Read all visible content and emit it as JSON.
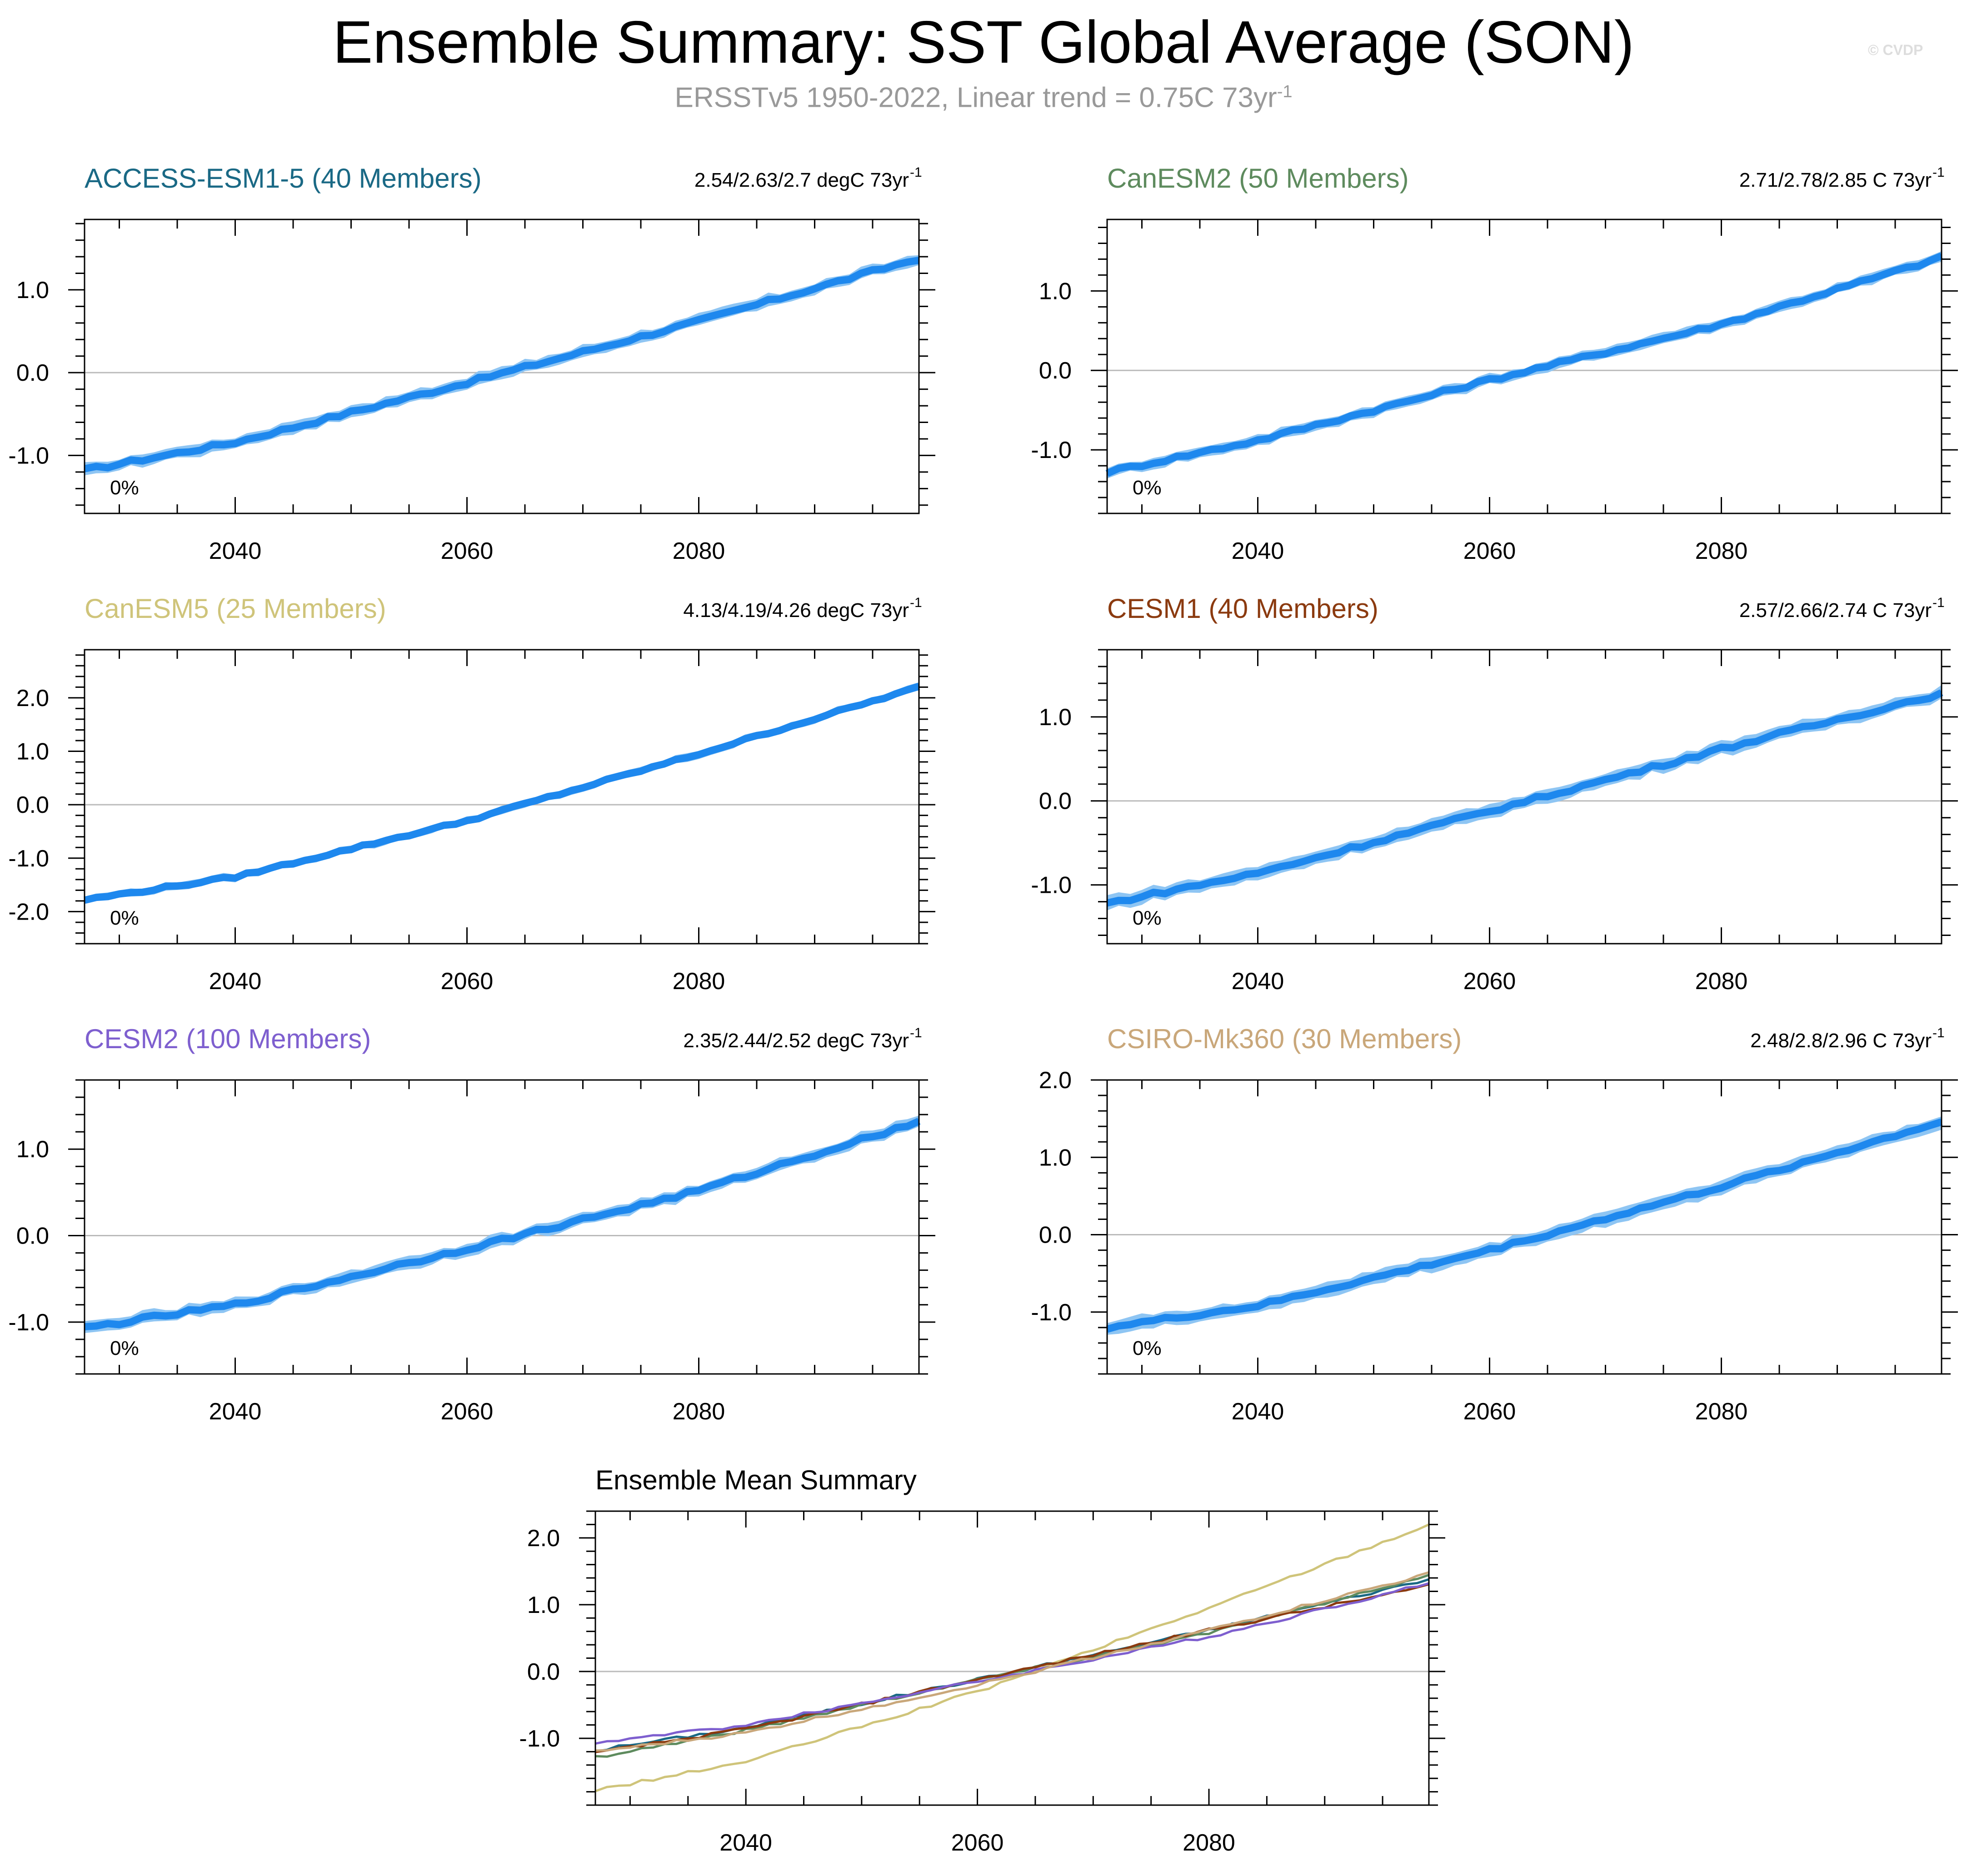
{
  "figure": {
    "title": "Ensemble Summary: SST Global Average (SON)",
    "subtitle_text": "ERSSTv5 1950-2022, Linear trend = 0.75C 73yr",
    "subtitle_sup": "-1",
    "watermark": "© CVDP",
    "colors": {
      "band": "#8ec5f3",
      "mean": "#1e88ee",
      "zero": "#bbbbbb"
    }
  },
  "chart_data": [
    {
      "type": "area",
      "title": "ACCESS-ESM1-5 (40 Members)",
      "title_color": "#1a6985",
      "trend_text": "2.54/2.63/2.7 degC 73yr",
      "trend_sup": "-1",
      "annotation": "0%",
      "x_start": 2027,
      "x_end": 2099,
      "xticks": [
        2040,
        2060,
        2080
      ],
      "xtick_labels": [
        "2040",
        "2060",
        "2080"
      ],
      "ylim": [
        -1.7,
        1.85
      ],
      "yticks": [
        -1.0,
        0.0,
        1.0
      ],
      "ytick_labels": [
        "-1.0",
        "0.0",
        "1.0"
      ],
      "series": [
        {
          "x": [
            2027,
            2040,
            2060,
            2080,
            2099
          ],
          "y": [
            -1.18,
            -0.84,
            -0.12,
            0.62,
            1.38
          ]
        }
      ],
      "band_halfwidth": 0.07
    },
    {
      "type": "area",
      "title": "CanESM2 (50 Members)",
      "title_color": "#5e8b5e",
      "trend_text": "2.71/2.78/2.85 C 73yr",
      "trend_sup": "-1",
      "annotation": "0%",
      "x_start": 2027,
      "x_end": 2099,
      "xticks": [
        2040,
        2060,
        2080
      ],
      "xtick_labels": [
        "2040",
        "2060",
        "2080"
      ],
      "ylim": [
        -1.8,
        1.9
      ],
      "yticks": [
        -1.0,
        0.0,
        1.0
      ],
      "ytick_labels": [
        "-1.0",
        "0.0",
        "1.0"
      ],
      "series": [
        {
          "x": [
            2027,
            2040,
            2060,
            2080,
            2099
          ],
          "y": [
            -1.28,
            -0.88,
            -0.12,
            0.58,
            1.42
          ]
        }
      ],
      "band_halfwidth": 0.07
    },
    {
      "type": "area",
      "title": "CanESM5 (25 Members)",
      "title_color": "#cfc47a",
      "trend_text": "4.13/4.19/4.26 degC 73yr",
      "trend_sup": "-1",
      "annotation": "0%",
      "x_start": 2027,
      "x_end": 2099,
      "xticks": [
        2040,
        2060,
        2080
      ],
      "xtick_labels": [
        "2040",
        "2060",
        "2080"
      ],
      "ylim": [
        -2.6,
        2.9
      ],
      "yticks": [
        -2.0,
        -1.0,
        0.0,
        1.0,
        2.0
      ],
      "ytick_labels": [
        "-2.0",
        "-1.0",
        "0.0",
        "1.0",
        "2.0"
      ],
      "series": [
        {
          "x": [
            2027,
            2040,
            2060,
            2080,
            2099
          ],
          "y": [
            -1.78,
            -1.35,
            -0.3,
            0.95,
            2.2
          ]
        }
      ],
      "band_halfwidth": 0.07
    },
    {
      "type": "area",
      "title": "CESM1 (40 Members)",
      "title_color": "#8b3a0f",
      "trend_text": "2.57/2.66/2.74 C 73yr",
      "trend_sup": "-1",
      "annotation": "0%",
      "x_start": 2027,
      "x_end": 2099,
      "xticks": [
        2040,
        2060,
        2080
      ],
      "xtick_labels": [
        "2040",
        "2060",
        "2080"
      ],
      "ylim": [
        -1.7,
        1.8
      ],
      "yticks": [
        -1.0,
        0.0,
        1.0
      ],
      "ytick_labels": [
        "-1.0",
        "0.0",
        "1.0"
      ],
      "series": [
        {
          "x": [
            2027,
            2040,
            2060,
            2080,
            2099
          ],
          "y": [
            -1.22,
            -0.86,
            -0.12,
            0.62,
            1.28
          ]
        }
      ],
      "band_halfwidth": 0.08
    },
    {
      "type": "area",
      "title": "CESM2 (100 Members)",
      "title_color": "#7e5fcf",
      "trend_text": "2.35/2.44/2.52 degC 73yr",
      "trend_sup": "-1",
      "annotation": "0%",
      "x_start": 2027,
      "x_end": 2099,
      "xticks": [
        2040,
        2060,
        2080
      ],
      "xtick_labels": [
        "2040",
        "2060",
        "2080"
      ],
      "ylim": [
        -1.6,
        1.8
      ],
      "yticks": [
        -1.0,
        0.0,
        1.0
      ],
      "ytick_labels": [
        "-1.0",
        "0.0",
        "1.0"
      ],
      "series": [
        {
          "x": [
            2027,
            2040,
            2060,
            2080,
            2099
          ],
          "y": [
            -1.07,
            -0.8,
            -0.15,
            0.52,
            1.32
          ]
        }
      ],
      "band_halfwidth": 0.07
    },
    {
      "type": "area",
      "title": "CSIRO-Mk360 (30 Members)",
      "title_color": "#c9a77a",
      "trend_text": "2.48/2.8/2.96 C 73yr",
      "trend_sup": "-1",
      "annotation": "0%",
      "x_start": 2027,
      "x_end": 2099,
      "xticks": [
        2040,
        2060,
        2080
      ],
      "xtick_labels": [
        "2040",
        "2060",
        "2080"
      ],
      "ylim": [
        -1.8,
        2.0
      ],
      "yticks": [
        -1.0,
        0.0,
        1.0,
        2.0
      ],
      "ytick_labels": [
        "-1.0",
        "0.0",
        "1.0",
        "2.0"
      ],
      "series": [
        {
          "x": [
            2027,
            2040,
            2060,
            2080,
            2099
          ],
          "y": [
            -1.2,
            -0.92,
            -0.2,
            0.62,
            1.46
          ]
        }
      ],
      "band_halfwidth": 0.09
    },
    {
      "type": "line",
      "title": "Ensemble Mean Summary",
      "title_color": "#000000",
      "x_start": 2027,
      "x_end": 2099,
      "xticks": [
        2040,
        2060,
        2080
      ],
      "xtick_labels": [
        "2040",
        "2060",
        "2080"
      ],
      "ylim": [
        -2.0,
        2.4
      ],
      "yticks": [
        -1.0,
        0.0,
        1.0,
        2.0
      ],
      "ytick_labels": [
        "-1.0",
        "0.0",
        "1.0",
        "2.0"
      ],
      "series": [
        {
          "color": "#1a6985",
          "x": [
            2027,
            2040,
            2060,
            2080,
            2099
          ],
          "y": [
            -1.18,
            -0.84,
            -0.12,
            0.62,
            1.38
          ]
        },
        {
          "color": "#5e8b5e",
          "x": [
            2027,
            2040,
            2060,
            2080,
            2099
          ],
          "y": [
            -1.28,
            -0.88,
            -0.12,
            0.58,
            1.42
          ]
        },
        {
          "color": "#cfc47a",
          "x": [
            2027,
            2040,
            2060,
            2080,
            2099
          ],
          "y": [
            -1.78,
            -1.35,
            -0.3,
            0.95,
            2.2
          ]
        },
        {
          "color": "#8b3a0f",
          "x": [
            2027,
            2040,
            2060,
            2080,
            2099
          ],
          "y": [
            -1.22,
            -0.86,
            -0.12,
            0.62,
            1.28
          ]
        },
        {
          "color": "#7e5fcf",
          "x": [
            2027,
            2040,
            2060,
            2080,
            2099
          ],
          "y": [
            -1.07,
            -0.8,
            -0.15,
            0.52,
            1.32
          ]
        },
        {
          "color": "#c9a77a",
          "x": [
            2027,
            2040,
            2060,
            2080,
            2099
          ],
          "y": [
            -1.2,
            -0.92,
            -0.2,
            0.62,
            1.46
          ]
        }
      ]
    }
  ]
}
